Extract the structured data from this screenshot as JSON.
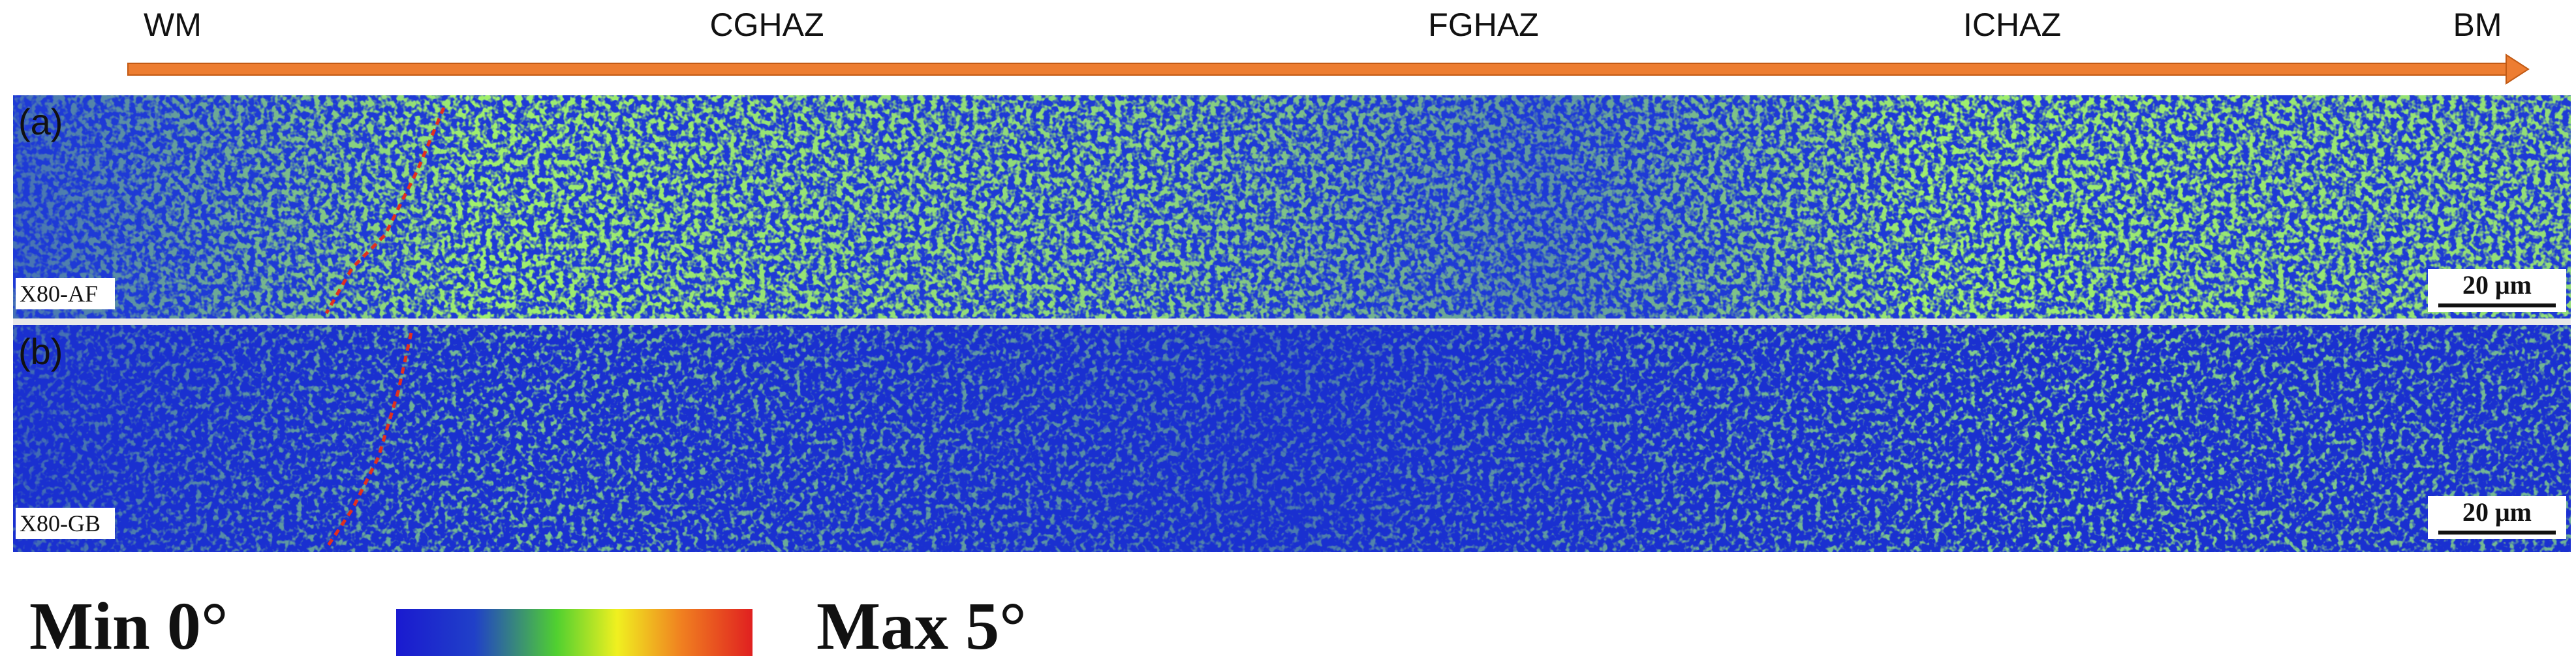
{
  "zones": [
    "WM",
    "CGHAZ",
    "FGHAZ",
    "ICHAZ",
    "BM"
  ],
  "panels": [
    {
      "label": "(a)",
      "sample": "X80-AF",
      "scale_bar": "20 μm"
    },
    {
      "label": "(b)",
      "sample": "X80-GB",
      "scale_bar": "20 μm"
    }
  ],
  "legend": {
    "min": "Min 0°",
    "max": "Max 5°"
  }
}
